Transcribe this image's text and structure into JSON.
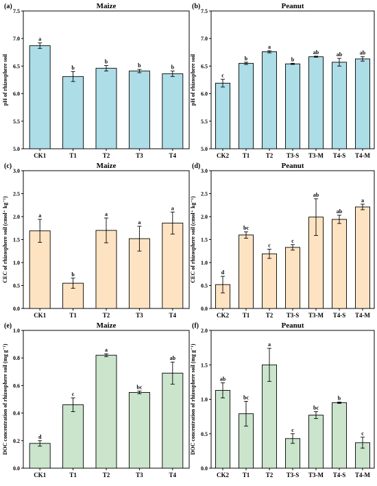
{
  "chart_data": [
    {
      "panel_label": "(a)",
      "title": "Maize",
      "type": "bar",
      "ylabel": "pH of rhizosphere soil",
      "ylim": [
        5.0,
        7.5
      ],
      "yticks": [
        "5.0",
        "5.5",
        "6.0",
        "6.5",
        "7.0",
        "7.5"
      ],
      "categories": [
        "CK1",
        "T1",
        "T2",
        "T3",
        "T4"
      ],
      "values": [
        6.87,
        6.31,
        6.46,
        6.41,
        6.36
      ],
      "errors": [
        0.05,
        0.09,
        0.05,
        0.03,
        0.05
      ],
      "letters": [
        "a",
        "b",
        "b",
        "b",
        "b"
      ],
      "color": "#ADDDE6"
    },
    {
      "panel_label": "(b)",
      "title": "Peanut",
      "type": "bar",
      "ylabel": "pH of rhizosphere soil",
      "ylim": [
        5.0,
        7.5
      ],
      "yticks": [
        "5.0",
        "5.5",
        "6.0",
        "6.5",
        "7.0",
        "7.5"
      ],
      "categories": [
        "CK2",
        "T1",
        "T2",
        "T3-S",
        "T3-M",
        "T4-S",
        "T4-M"
      ],
      "values": [
        6.19,
        6.55,
        6.76,
        6.54,
        6.67,
        6.57,
        6.63
      ],
      "errors": [
        0.07,
        0.02,
        0.02,
        0.01,
        0.01,
        0.07,
        0.04
      ],
      "letters": [
        "c",
        "b",
        "a",
        "b",
        "ab",
        "ab",
        "ab"
      ],
      "color": "#ADDDE6"
    },
    {
      "panel_label": "(c)",
      "title": "Maize",
      "type": "bar",
      "ylabel": "CEC of rhizosphere soil (cmol⁺ kg⁻¹)",
      "ylim": [
        0.0,
        3.0
      ],
      "yticks": [
        "0.0",
        "0.5",
        "1.0",
        "1.5",
        "2.0",
        "2.5",
        "3.0"
      ],
      "categories": [
        "CK1",
        "T1",
        "T2",
        "T3",
        "T4"
      ],
      "values": [
        1.69,
        0.55,
        1.7,
        1.52,
        1.86
      ],
      "errors": [
        0.25,
        0.11,
        0.27,
        0.27,
        0.24
      ],
      "letters": [
        "a",
        "b",
        "a",
        "a",
        "a"
      ],
      "color": "#FDE3C2"
    },
    {
      "panel_label": "(d)",
      "title": "Peanut",
      "type": "bar",
      "ylabel": "CEC of rhizosphere soil (cmol⁺ kg⁻¹)",
      "ylim": [
        0.0,
        3.0
      ],
      "yticks": [
        "0.0",
        "0.5",
        "1.0",
        "1.5",
        "2.0",
        "2.5",
        "3.0"
      ],
      "categories": [
        "CK2",
        "T1",
        "T2",
        "T3-S",
        "T3-M",
        "T4-S",
        "T4-M"
      ],
      "values": [
        0.52,
        1.6,
        1.19,
        1.33,
        1.99,
        1.94,
        2.21
      ],
      "errors": [
        0.18,
        0.07,
        0.1,
        0.06,
        0.4,
        0.09,
        0.06
      ],
      "letters": [
        "d",
        "bc",
        "c",
        "c",
        "ab",
        "ab",
        "a"
      ],
      "color": "#FDE3C2"
    },
    {
      "panel_label": "(e)",
      "title": "Maize",
      "type": "bar",
      "ylabel": "DOC concentration of rhizosphere soil (mg g⁻¹)",
      "ylim": [
        0.0,
        1.0
      ],
      "yticks": [
        "0.0",
        "0.2",
        "0.4",
        "0.6",
        "0.8",
        "1.0"
      ],
      "categories": [
        "CK1",
        "T1",
        "T2",
        "T3",
        "T4"
      ],
      "values": [
        0.18,
        0.46,
        0.82,
        0.55,
        0.69
      ],
      "errors": [
        0.02,
        0.05,
        0.01,
        0.01,
        0.08
      ],
      "letters": [
        "d",
        "c",
        "a",
        "bc",
        "ab"
      ],
      "color": "#CBE4CC"
    },
    {
      "panel_label": "(f)",
      "title": "Peanut",
      "type": "bar",
      "ylabel": "DOC concentration of rhizosphere soil (mg g⁻¹)",
      "ylim": [
        0.0,
        2.0
      ],
      "yticks": [
        "0.0",
        "0.5",
        "1.0",
        "1.5",
        "2.0"
      ],
      "categories": [
        "CK2",
        "T1",
        "T2",
        "T3-S",
        "T3-M",
        "T4-S",
        "T4-M"
      ],
      "values": [
        1.13,
        0.79,
        1.5,
        0.43,
        0.77,
        0.95,
        0.37
      ],
      "errors": [
        0.11,
        0.18,
        0.24,
        0.07,
        0.05,
        0.01,
        0.08
      ],
      "letters": [
        "ab",
        "bc",
        "a",
        "c",
        "bc",
        "b",
        "c"
      ],
      "color": "#CBE4CC"
    }
  ]
}
